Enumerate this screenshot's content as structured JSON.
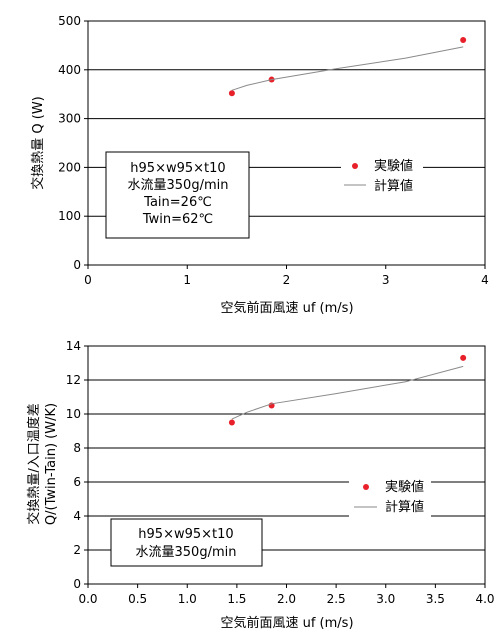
{
  "chart_data": [
    {
      "type": "scatter",
      "xlabel": "空気前面風速 uf (m/s)",
      "ylabel": "交換熱量 Q (W)",
      "xlim": [
        0,
        4
      ],
      "ylim": [
        0,
        500
      ],
      "xticks": [
        "0",
        "1",
        "2",
        "3",
        "4"
      ],
      "yticks": [
        "0",
        "100",
        "200",
        "300",
        "400",
        "500"
      ],
      "grid": "horizontal",
      "legend_position": "right",
      "series": [
        {
          "name": "実験値",
          "kind": "points",
          "color": "#e8202a",
          "x": [
            1.45,
            1.85,
            3.78
          ],
          "y": [
            352,
            380,
            461
          ]
        },
        {
          "name": "計算値",
          "kind": "line",
          "color": "#8a8a8a",
          "x": [
            1.45,
            1.6,
            1.85,
            2.5,
            3.2,
            3.78
          ],
          "y": [
            358,
            368,
            380,
            402,
            424,
            447
          ]
        }
      ],
      "annotation": [
        "h95×w95×t10",
        "水流量350g/min",
        "Tain=26℃",
        "Twin=62℃"
      ]
    },
    {
      "type": "scatter",
      "xlabel": "空気前面風速 uf (m/s)",
      "ylabel": [
        "交換熱量/入口温度差",
        "Q/(Twin-Tain) (W/K)"
      ],
      "xlim": [
        0,
        4
      ],
      "ylim": [
        0,
        14
      ],
      "xticks": [
        "0.0",
        "0.5",
        "1.0",
        "1.5",
        "2.0",
        "2.5",
        "3.0",
        "3.5",
        "4.0"
      ],
      "yticks": [
        "0",
        "2",
        "4",
        "6",
        "8",
        "10",
        "12",
        "14"
      ],
      "grid": "horizontal",
      "legend_position": "right",
      "series": [
        {
          "name": "実験値",
          "kind": "points",
          "color": "#e8202a",
          "x": [
            1.45,
            1.85,
            3.78
          ],
          "y": [
            9.5,
            10.5,
            13.3
          ]
        },
        {
          "name": "計算値",
          "kind": "line",
          "color": "#8a8a8a",
          "x": [
            1.45,
            1.6,
            1.85,
            2.5,
            3.2,
            3.78
          ],
          "y": [
            9.7,
            10.1,
            10.6,
            11.2,
            11.9,
            12.8
          ]
        }
      ],
      "annotation": [
        "h95×w95×t10",
        "水流量350g/min"
      ]
    }
  ]
}
